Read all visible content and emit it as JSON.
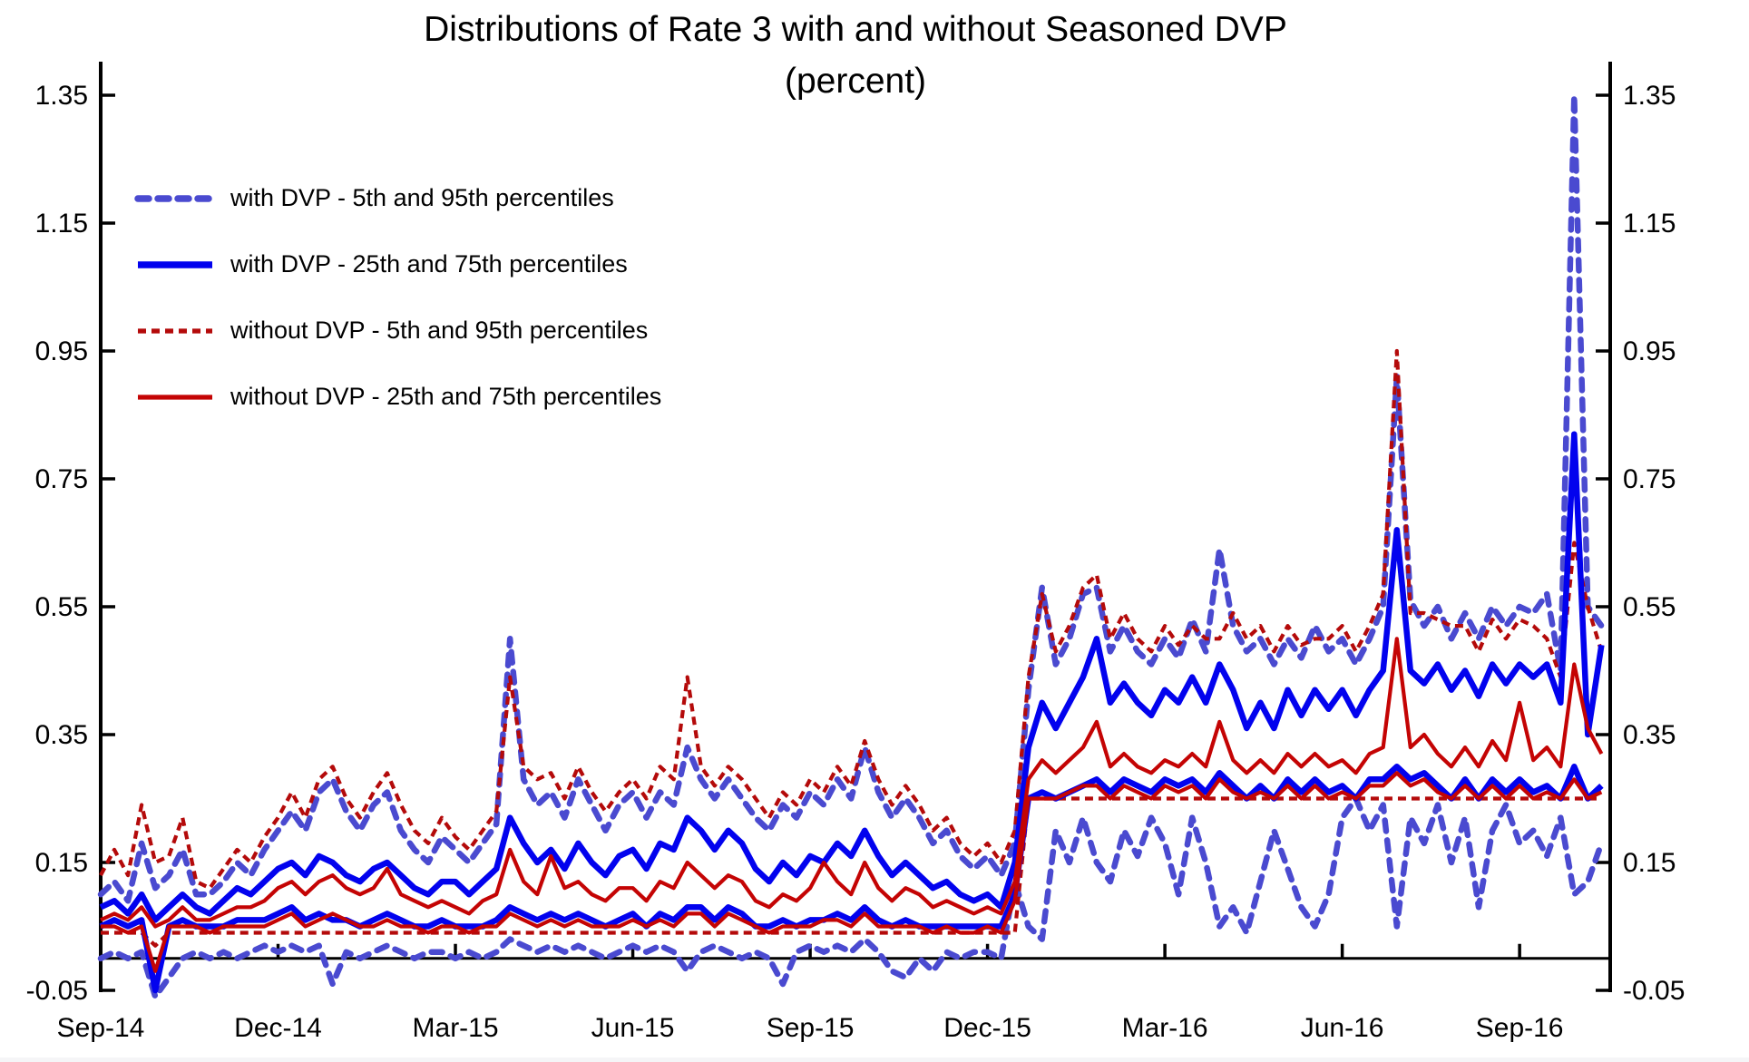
{
  "title": {
    "line1": "Distributions of Rate 3 with and without Seasoned DVP",
    "line2": "(percent)"
  },
  "chart_data": {
    "type": "line",
    "title": "Distributions of Rate 3 with and without Seasoned DVP (percent)",
    "title_line1": "Distributions of Rate 3 with and without Seasoned DVP",
    "title_line2": "(percent)",
    "legend_position": "top-left-inside",
    "grid": false,
    "x_axis": {
      "unit": "weeks since Sep-2014 (daily rate data, weekly sampled)",
      "min_week": 0,
      "max_week": 110.64,
      "tick_weeks": [
        0,
        13,
        26,
        39,
        52,
        65,
        78,
        91,
        104
      ],
      "tick_labels": [
        "Sep-14",
        "Dec-14",
        "Mar-15",
        "Jun-15",
        "Sep-15",
        "Dec-15",
        "Mar-16",
        "Jun-16",
        "Sep-16"
      ]
    },
    "y_axis": {
      "min": -0.05,
      "max": 1.35,
      "ticks": [
        -0.05,
        0.15,
        0.35,
        0.55,
        0.75,
        0.95,
        1.15,
        1.35
      ],
      "baseline": 0,
      "labels_both_sides": true
    },
    "styles": {
      "with_dvp_outer": {
        "color": "#4A4AD0",
        "width": 6.5,
        "dash": [
          12,
          10
        ],
        "cap": "round"
      },
      "with_dvp_inner": {
        "color": "#0202EE",
        "width": 6.5,
        "dash": null,
        "cap": "butt"
      },
      "without_dvp_outer": {
        "color": "#B40A0A",
        "width": 4.2,
        "dash": [
          9,
          6
        ],
        "cap": "butt"
      },
      "without_dvp_inner": {
        "color": "#C40404",
        "width": 4.2,
        "dash": null,
        "cap": "butt"
      }
    },
    "legend": {
      "items": [
        {
          "label": "with DVP - 5th and 95th percentiles",
          "style": "with_dvp_outer"
        },
        {
          "label": "with DVP - 25th and 75th percentiles",
          "style": "with_dvp_inner"
        },
        {
          "label": "without DVP - 5th and 95th percentiles",
          "style": "without_dvp_outer"
        },
        {
          "label": "without DVP - 25th and 75th percentiles",
          "style": "without_dvp_inner"
        }
      ]
    },
    "series": [
      {
        "name": "with DVP - 95th percentile",
        "style": "with_dvp_outer",
        "start_week": 0,
        "step_weeks": 1,
        "values": [
          0.1,
          0.12,
          0.09,
          0.18,
          0.11,
          0.13,
          0.17,
          0.1,
          0.1,
          0.12,
          0.15,
          0.13,
          0.17,
          0.2,
          0.23,
          0.2,
          0.26,
          0.28,
          0.23,
          0.2,
          0.24,
          0.26,
          0.2,
          0.17,
          0.15,
          0.19,
          0.17,
          0.15,
          0.18,
          0.21,
          0.5,
          0.28,
          0.24,
          0.26,
          0.22,
          0.28,
          0.24,
          0.2,
          0.24,
          0.26,
          0.22,
          0.26,
          0.24,
          0.33,
          0.28,
          0.25,
          0.28,
          0.25,
          0.22,
          0.2,
          0.24,
          0.22,
          0.26,
          0.24,
          0.28,
          0.25,
          0.33,
          0.26,
          0.22,
          0.25,
          0.22,
          0.18,
          0.2,
          0.16,
          0.14,
          0.16,
          0.13,
          0.18,
          0.42,
          0.58,
          0.46,
          0.5,
          0.57,
          0.58,
          0.48,
          0.52,
          0.48,
          0.46,
          0.5,
          0.47,
          0.53,
          0.48,
          0.64,
          0.52,
          0.48,
          0.5,
          0.46,
          0.5,
          0.47,
          0.52,
          0.48,
          0.5,
          0.46,
          0.5,
          0.55,
          0.91,
          0.56,
          0.52,
          0.55,
          0.5,
          0.54,
          0.5,
          0.55,
          0.52,
          0.55,
          0.54,
          0.57,
          0.45,
          1.35,
          0.55,
          0.52
        ]
      },
      {
        "name": "with DVP - 5th percentile",
        "style": "with_dvp_outer",
        "start_week": 0,
        "step_weeks": 1,
        "values": [
          0.0,
          0.01,
          0.0,
          0.01,
          -0.06,
          -0.03,
          0.0,
          0.01,
          0.0,
          0.01,
          0.0,
          0.01,
          0.02,
          0.01,
          0.02,
          0.01,
          0.02,
          -0.04,
          0.01,
          0.0,
          0.01,
          0.02,
          0.01,
          0.0,
          0.01,
          0.01,
          0.0,
          0.01,
          0.0,
          0.01,
          0.03,
          0.02,
          0.01,
          0.02,
          0.01,
          0.02,
          0.01,
          0.0,
          0.01,
          0.02,
          0.01,
          0.02,
          0.01,
          -0.02,
          0.01,
          0.02,
          0.01,
          0.0,
          0.01,
          0.0,
          -0.04,
          0.01,
          0.02,
          0.01,
          0.02,
          0.01,
          0.03,
          0.01,
          -0.02,
          -0.03,
          0.0,
          -0.02,
          0.01,
          0.0,
          0.01,
          0.01,
          0.0,
          0.12,
          0.05,
          0.03,
          0.2,
          0.15,
          0.22,
          0.15,
          0.12,
          0.2,
          0.16,
          0.22,
          0.18,
          0.1,
          0.22,
          0.15,
          0.05,
          0.08,
          0.04,
          0.12,
          0.2,
          0.14,
          0.08,
          0.05,
          0.1,
          0.22,
          0.25,
          0.2,
          0.24,
          0.05,
          0.22,
          0.18,
          0.24,
          0.15,
          0.22,
          0.08,
          0.2,
          0.24,
          0.18,
          0.2,
          0.16,
          0.22,
          0.1,
          0.12,
          0.18
        ]
      },
      {
        "name": "without DVP - 95th percentile",
        "style": "without_dvp_outer",
        "start_week": 0,
        "step_weeks": 1,
        "values": [
          0.13,
          0.17,
          0.13,
          0.24,
          0.15,
          0.16,
          0.22,
          0.12,
          0.11,
          0.14,
          0.17,
          0.15,
          0.19,
          0.22,
          0.26,
          0.22,
          0.28,
          0.3,
          0.25,
          0.22,
          0.26,
          0.29,
          0.24,
          0.2,
          0.18,
          0.22,
          0.19,
          0.17,
          0.2,
          0.23,
          0.44,
          0.3,
          0.28,
          0.29,
          0.25,
          0.3,
          0.26,
          0.23,
          0.26,
          0.28,
          0.25,
          0.3,
          0.28,
          0.44,
          0.3,
          0.27,
          0.3,
          0.28,
          0.25,
          0.22,
          0.26,
          0.24,
          0.28,
          0.26,
          0.3,
          0.27,
          0.34,
          0.28,
          0.24,
          0.27,
          0.24,
          0.2,
          0.22,
          0.18,
          0.16,
          0.18,
          0.15,
          0.2,
          0.44,
          0.57,
          0.48,
          0.52,
          0.58,
          0.6,
          0.5,
          0.54,
          0.5,
          0.48,
          0.52,
          0.49,
          0.52,
          0.5,
          0.5,
          0.54,
          0.5,
          0.52,
          0.48,
          0.52,
          0.49,
          0.5,
          0.5,
          0.52,
          0.48,
          0.52,
          0.57,
          0.95,
          0.54,
          0.54,
          0.53,
          0.52,
          0.52,
          0.48,
          0.53,
          0.5,
          0.53,
          0.52,
          0.5,
          0.44,
          0.65,
          0.55,
          0.48
        ]
      },
      {
        "name": "without DVP - 5th percentile",
        "style": "without_dvp_outer",
        "start_week": 0,
        "step_weeks": 1,
        "values": [
          0.04,
          0.04,
          0.04,
          0.04,
          0.02,
          0.04,
          0.04,
          0.04,
          0.04,
          0.04,
          0.04,
          0.04,
          0.04,
          0.04,
          0.04,
          0.04,
          0.04,
          0.04,
          0.04,
          0.04,
          0.04,
          0.04,
          0.04,
          0.04,
          0.04,
          0.04,
          0.04,
          0.04,
          0.04,
          0.04,
          0.04,
          0.04,
          0.04,
          0.04,
          0.04,
          0.04,
          0.04,
          0.04,
          0.04,
          0.04,
          0.04,
          0.04,
          0.04,
          0.04,
          0.04,
          0.04,
          0.04,
          0.04,
          0.04,
          0.04,
          0.04,
          0.04,
          0.04,
          0.04,
          0.04,
          0.04,
          0.04,
          0.04,
          0.04,
          0.04,
          0.04,
          0.04,
          0.04,
          0.04,
          0.04,
          0.04,
          0.04,
          0.04,
          0.25,
          0.25,
          0.25,
          0.25,
          0.25,
          0.25,
          0.25,
          0.25,
          0.25,
          0.25,
          0.25,
          0.25,
          0.25,
          0.25,
          0.25,
          0.25,
          0.25,
          0.25,
          0.25,
          0.25,
          0.25,
          0.25,
          0.25,
          0.25,
          0.25,
          0.25,
          0.25,
          0.25,
          0.25,
          0.25,
          0.25,
          0.25,
          0.25,
          0.25,
          0.25,
          0.25,
          0.25,
          0.25,
          0.25,
          0.25,
          0.25,
          0.25,
          0.25
        ]
      },
      {
        "name": "with DVP - 75th percentile",
        "style": "with_dvp_inner",
        "start_week": 0,
        "step_weeks": 1,
        "values": [
          0.08,
          0.09,
          0.07,
          0.1,
          0.06,
          0.08,
          0.1,
          0.08,
          0.07,
          0.09,
          0.11,
          0.1,
          0.12,
          0.14,
          0.15,
          0.13,
          0.16,
          0.15,
          0.13,
          0.12,
          0.14,
          0.15,
          0.13,
          0.11,
          0.1,
          0.12,
          0.12,
          0.1,
          0.12,
          0.14,
          0.22,
          0.18,
          0.15,
          0.17,
          0.14,
          0.18,
          0.15,
          0.13,
          0.16,
          0.17,
          0.14,
          0.18,
          0.17,
          0.22,
          0.2,
          0.17,
          0.2,
          0.18,
          0.14,
          0.12,
          0.15,
          0.13,
          0.16,
          0.15,
          0.18,
          0.16,
          0.2,
          0.16,
          0.13,
          0.15,
          0.13,
          0.11,
          0.12,
          0.1,
          0.09,
          0.1,
          0.08,
          0.15,
          0.33,
          0.4,
          0.36,
          0.4,
          0.44,
          0.5,
          0.4,
          0.43,
          0.4,
          0.38,
          0.42,
          0.4,
          0.44,
          0.4,
          0.46,
          0.42,
          0.36,
          0.4,
          0.36,
          0.42,
          0.38,
          0.42,
          0.39,
          0.42,
          0.38,
          0.42,
          0.45,
          0.67,
          0.45,
          0.43,
          0.46,
          0.42,
          0.45,
          0.41,
          0.46,
          0.43,
          0.46,
          0.44,
          0.46,
          0.4,
          0.82,
          0.35,
          0.49
        ]
      },
      {
        "name": "with DVP - 25th percentile",
        "style": "with_dvp_inner",
        "start_week": 0,
        "step_weeks": 1,
        "values": [
          0.05,
          0.06,
          0.05,
          0.06,
          -0.05,
          0.05,
          0.06,
          0.05,
          0.05,
          0.05,
          0.06,
          0.06,
          0.06,
          0.07,
          0.08,
          0.06,
          0.07,
          0.06,
          0.06,
          0.05,
          0.06,
          0.07,
          0.06,
          0.05,
          0.05,
          0.06,
          0.05,
          0.05,
          0.05,
          0.06,
          0.08,
          0.07,
          0.06,
          0.07,
          0.06,
          0.07,
          0.06,
          0.05,
          0.06,
          0.07,
          0.05,
          0.07,
          0.06,
          0.08,
          0.08,
          0.06,
          0.08,
          0.07,
          0.05,
          0.05,
          0.06,
          0.05,
          0.06,
          0.06,
          0.07,
          0.06,
          0.08,
          0.06,
          0.05,
          0.06,
          0.05,
          0.05,
          0.05,
          0.05,
          0.05,
          0.05,
          0.05,
          0.1,
          0.25,
          0.26,
          0.25,
          0.26,
          0.27,
          0.28,
          0.26,
          0.28,
          0.27,
          0.26,
          0.28,
          0.27,
          0.28,
          0.26,
          0.29,
          0.27,
          0.25,
          0.27,
          0.25,
          0.28,
          0.26,
          0.28,
          0.26,
          0.27,
          0.25,
          0.28,
          0.28,
          0.3,
          0.28,
          0.29,
          0.27,
          0.25,
          0.28,
          0.25,
          0.28,
          0.26,
          0.28,
          0.26,
          0.27,
          0.25,
          0.3,
          0.25,
          0.27
        ]
      },
      {
        "name": "without DVP - 75th percentile",
        "style": "without_dvp_inner",
        "start_week": 0,
        "step_weeks": 1,
        "values": [
          0.06,
          0.07,
          0.06,
          0.08,
          0.05,
          0.06,
          0.08,
          0.06,
          0.06,
          0.07,
          0.08,
          0.08,
          0.09,
          0.11,
          0.12,
          0.1,
          0.12,
          0.13,
          0.11,
          0.1,
          0.11,
          0.14,
          0.1,
          0.09,
          0.08,
          0.09,
          0.08,
          0.07,
          0.09,
          0.1,
          0.17,
          0.12,
          0.1,
          0.16,
          0.11,
          0.12,
          0.1,
          0.09,
          0.11,
          0.11,
          0.09,
          0.12,
          0.11,
          0.15,
          0.13,
          0.11,
          0.13,
          0.12,
          0.09,
          0.08,
          0.1,
          0.09,
          0.11,
          0.15,
          0.12,
          0.1,
          0.15,
          0.11,
          0.09,
          0.11,
          0.1,
          0.08,
          0.09,
          0.08,
          0.07,
          0.08,
          0.07,
          0.12,
          0.28,
          0.31,
          0.29,
          0.31,
          0.33,
          0.37,
          0.3,
          0.32,
          0.3,
          0.29,
          0.31,
          0.3,
          0.32,
          0.3,
          0.37,
          0.31,
          0.29,
          0.31,
          0.29,
          0.32,
          0.3,
          0.32,
          0.3,
          0.31,
          0.29,
          0.32,
          0.33,
          0.5,
          0.33,
          0.35,
          0.32,
          0.3,
          0.33,
          0.3,
          0.34,
          0.31,
          0.4,
          0.31,
          0.33,
          0.3,
          0.46,
          0.36,
          0.32
        ]
      },
      {
        "name": "without DVP - 25th percentile",
        "style": "without_dvp_inner",
        "start_week": 0,
        "step_weeks": 1,
        "values": [
          0.05,
          0.05,
          0.04,
          0.05,
          -0.02,
          0.05,
          0.05,
          0.05,
          0.04,
          0.05,
          0.05,
          0.05,
          0.05,
          0.06,
          0.07,
          0.05,
          0.06,
          0.07,
          0.06,
          0.05,
          0.05,
          0.06,
          0.05,
          0.05,
          0.04,
          0.05,
          0.05,
          0.04,
          0.05,
          0.05,
          0.07,
          0.06,
          0.05,
          0.06,
          0.05,
          0.06,
          0.05,
          0.05,
          0.05,
          0.06,
          0.05,
          0.06,
          0.05,
          0.07,
          0.07,
          0.05,
          0.07,
          0.06,
          0.05,
          0.04,
          0.05,
          0.05,
          0.05,
          0.06,
          0.06,
          0.05,
          0.07,
          0.05,
          0.05,
          0.05,
          0.05,
          0.04,
          0.05,
          0.04,
          0.04,
          0.05,
          0.04,
          0.09,
          0.25,
          0.25,
          0.25,
          0.26,
          0.27,
          0.27,
          0.25,
          0.27,
          0.26,
          0.25,
          0.27,
          0.26,
          0.27,
          0.25,
          0.28,
          0.26,
          0.25,
          0.26,
          0.25,
          0.27,
          0.25,
          0.27,
          0.25,
          0.26,
          0.25,
          0.27,
          0.27,
          0.29,
          0.27,
          0.28,
          0.26,
          0.25,
          0.27,
          0.25,
          0.27,
          0.25,
          0.27,
          0.25,
          0.26,
          0.25,
          0.28,
          0.25,
          0.26
        ]
      }
    ]
  }
}
